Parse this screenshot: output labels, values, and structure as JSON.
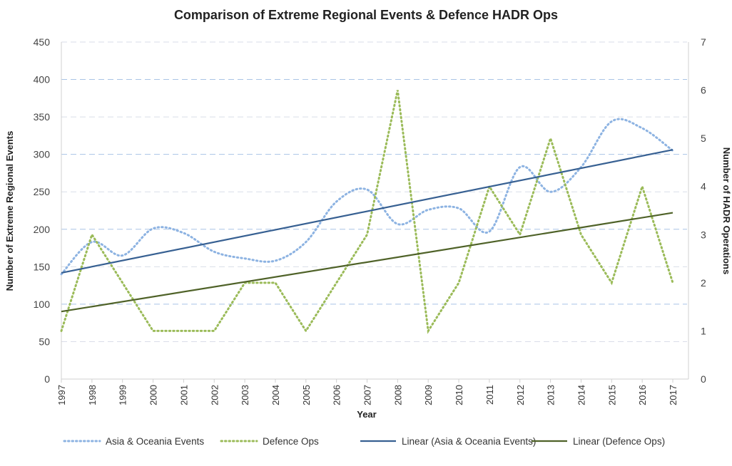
{
  "chart_data": {
    "type": "line",
    "title": "Comparison of Extreme Regional Events & Defence HADR Ops",
    "xlabel": "Year",
    "ylabel": "Number of Extreme Regional Events",
    "y2label": "Number of HADR Operations",
    "ylim": [
      0,
      450
    ],
    "y2lim": [
      0,
      7
    ],
    "yticks": [
      0,
      50,
      100,
      150,
      200,
      250,
      300,
      350,
      400,
      450
    ],
    "y2ticks": [
      0,
      1,
      2,
      3,
      4,
      5,
      6,
      7
    ],
    "grid": true,
    "legend": "bottom",
    "x": [
      1997,
      1998,
      1999,
      2000,
      2001,
      2002,
      2003,
      2004,
      2005,
      2006,
      2007,
      2008,
      2009,
      2010,
      2011,
      2012,
      2013,
      2014,
      2015,
      2016,
      2017
    ],
    "series": [
      {
        "name": "Asia & Oceania Events",
        "axis": "left",
        "style": "dotted",
        "color": "#8db3e2",
        "values": [
          140,
          183,
          165,
          201,
          195,
          170,
          161,
          158,
          183,
          237,
          253,
          207,
          226,
          228,
          197,
          283,
          250,
          283,
          344,
          335,
          305
        ]
      },
      {
        "name": "Defence Ops",
        "axis": "right",
        "style": "dotted",
        "color": "#9bbb59",
        "values": [
          1,
          3,
          2,
          1,
          1,
          1,
          2,
          2,
          1,
          2,
          3,
          6,
          1,
          2,
          4,
          3,
          5,
          3,
          2,
          4,
          2
        ]
      },
      {
        "name": "Linear (Asia & Oceania Events)",
        "axis": "left",
        "style": "trend",
        "color": "#376092",
        "of": 0
      },
      {
        "name": "Linear (Defence Ops)",
        "axis": "right",
        "style": "trend",
        "color": "#4f6228",
        "of": 1
      }
    ]
  }
}
